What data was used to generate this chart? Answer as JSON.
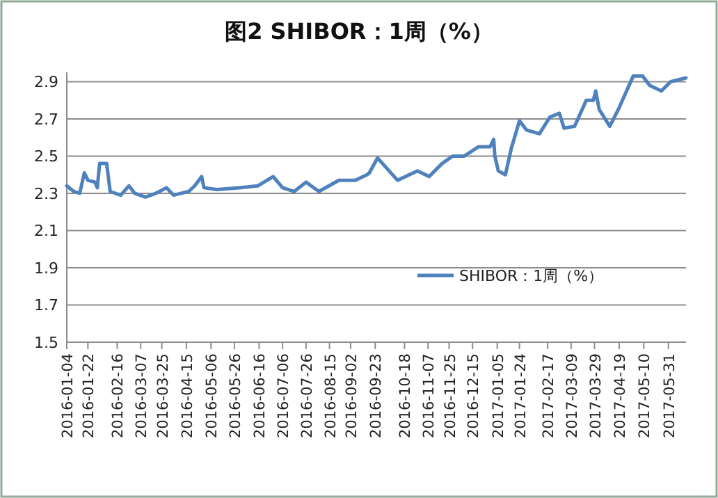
{
  "chart_data": {
    "type": "line",
    "title": "图2 SHIBOR：1周（%）",
    "x": [
      "2016-01-04",
      "2016-01-10",
      "2016-01-15",
      "2016-01-19",
      "2016-01-22",
      "2016-01-28",
      "2016-01-30",
      "2016-02-01",
      "2016-02-07",
      "2016-02-10",
      "2016-02-19",
      "2016-02-26",
      "2016-03-02",
      "2016-03-11",
      "2016-03-20",
      "2016-03-29",
      "2016-04-04",
      "2016-04-17",
      "2016-04-22",
      "2016-04-28",
      "2016-04-30",
      "2016-05-11",
      "2016-05-30",
      "2016-06-15",
      "2016-06-28",
      "2016-07-06",
      "2016-07-16",
      "2016-07-26",
      "2016-08-06",
      "2016-08-23",
      "2016-09-06",
      "2016-09-16",
      "2016-09-18",
      "2016-09-25",
      "2016-10-12",
      "2016-10-29",
      "2016-11-08",
      "2016-11-19",
      "2016-11-28",
      "2016-12-08",
      "2016-12-20",
      "2016-12-30",
      "2017-01-02",
      "2017-01-03",
      "2017-01-06",
      "2017-01-12",
      "2017-01-17",
      "2017-01-24",
      "2017-01-30",
      "2017-02-10",
      "2017-02-19",
      "2017-02-27",
      "2017-03-03",
      "2017-03-12",
      "2017-03-22",
      "2017-03-28",
      "2017-03-30",
      "2017-04-02",
      "2017-04-11",
      "2017-04-19",
      "2017-05-01",
      "2017-05-09",
      "2017-05-15",
      "2017-05-25",
      "2017-06-02",
      "2017-06-15"
    ],
    "series": [
      {
        "name": "SHIBOR：1周（%）",
        "color": "#4f81bd",
        "values": [
          2.34,
          2.31,
          2.3,
          2.41,
          2.37,
          2.36,
          2.33,
          2.46,
          2.46,
          2.31,
          2.29,
          2.34,
          2.3,
          2.28,
          2.3,
          2.33,
          2.29,
          2.31,
          2.34,
          2.39,
          2.33,
          2.32,
          2.33,
          2.34,
          2.39,
          2.33,
          2.31,
          2.36,
          2.31,
          2.37,
          2.37,
          2.4,
          2.41,
          2.49,
          2.37,
          2.42,
          2.39,
          2.46,
          2.5,
          2.5,
          2.55,
          2.55,
          2.59,
          2.5,
          2.42,
          2.4,
          2.54,
          2.69,
          2.64,
          2.62,
          2.71,
          2.73,
          2.65,
          2.66,
          2.8,
          2.8,
          2.85,
          2.75,
          2.66,
          2.76,
          2.93,
          2.93,
          2.88,
          2.85,
          2.9,
          2.92
        ]
      }
    ],
    "xlim": [
      "2016-01-04",
      "2017-06-15"
    ],
    "xticks": [
      "2016-01-04",
      "2016-01-22",
      "2016-02-16",
      "2016-03-07",
      "2016-03-25",
      "2016-04-15",
      "2016-05-06",
      "2016-05-26",
      "2016-06-16",
      "2016-07-06",
      "2016-07-26",
      "2016-08-15",
      "2016-09-02",
      "2016-09-23",
      "2016-10-18",
      "2016-11-07",
      "2016-11-25",
      "2016-12-15",
      "2017-01-05",
      "2017-01-24",
      "2017-02-17",
      "2017-03-09",
      "2017-03-29",
      "2017-04-19",
      "2017-05-10",
      "2017-05-31"
    ],
    "ylim": [
      1.5,
      2.95
    ],
    "yticks": [
      1.5,
      1.7,
      1.9,
      2.1,
      2.3,
      2.5,
      2.7,
      2.9
    ],
    "grid": "y",
    "legend": "right"
  }
}
